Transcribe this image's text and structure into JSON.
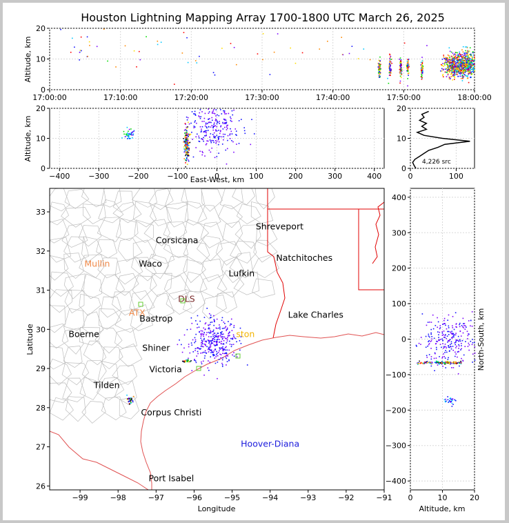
{
  "title": "Houston Lightning Mapping Array 1700-1800 UTC March 26, 2025",
  "chart_data": [
    {
      "type": "scatter",
      "panel": "altitude-time",
      "xlabel": "",
      "ylabel": "Altitude, km",
      "xticks": [
        "17:00:00",
        "17:10:00",
        "17:20:00",
        "17:30:00",
        "17:40:00",
        "17:50:00",
        "18:00:00"
      ],
      "xlim_minutes": [
        0,
        60
      ],
      "ylim": [
        0,
        20
      ],
      "yticks": [
        0,
        10,
        20
      ],
      "grid": true,
      "clusters": [
        {
          "t": 0.5,
          "alt": 12,
          "spread": 1
        },
        {
          "t": 3,
          "alt": 14,
          "spread": 5
        },
        {
          "t": 20,
          "alt": 13,
          "spread": 5
        },
        {
          "t": 41,
          "alt": 12,
          "spread": 5
        },
        {
          "t": 46.5,
          "alt": 7,
          "spread": 1.5
        },
        {
          "t": 48,
          "alt": 7.5,
          "spread": 1.5
        },
        {
          "t": 49.5,
          "alt": 7,
          "spread": 1.5
        },
        {
          "t": 50.5,
          "alt": 7.5,
          "spread": 1.5
        },
        {
          "t": 52.5,
          "alt": 7,
          "spread": 1.5
        },
        {
          "t": 56.5,
          "alt": 8,
          "spread": 2
        },
        {
          "t": 57.5,
          "alt": 8,
          "spread": 2
        },
        {
          "t": 58.5,
          "alt": 8.5,
          "spread": 2
        },
        {
          "t": 59.3,
          "alt": 8.5,
          "spread": 2
        }
      ]
    },
    {
      "type": "scatter",
      "panel": "altitude-east-west",
      "xlabel": "East-West, km",
      "ylabel": "Altitude, km",
      "xlim": [
        -425,
        425
      ],
      "xticks": [
        -400,
        -300,
        -200,
        -100,
        0,
        100,
        200,
        300,
        400
      ],
      "ylim": [
        0,
        20
      ],
      "yticks": [
        0,
        10,
        20
      ],
      "grid": true,
      "clusters": [
        {
          "x": -225,
          "alt": 12,
          "sx": 6,
          "salt": 1.2
        },
        {
          "x": -78,
          "alt": 8,
          "sx": 3,
          "salt": 3
        },
        {
          "x": -10,
          "alt": 14,
          "sx": 35,
          "salt": 4.5
        }
      ]
    },
    {
      "type": "line",
      "panel": "altitude-histogram",
      "xlim": [
        0,
        140
      ],
      "xticks": [
        0,
        100
      ],
      "ylim": [
        0,
        20
      ],
      "yticks": [
        0,
        10,
        20
      ],
      "annotation": "4,226 src",
      "profile_alt": [
        0,
        1,
        2,
        3,
        4,
        5,
        6,
        7,
        8,
        9,
        10,
        11,
        12,
        13,
        14,
        15,
        16,
        17,
        18,
        19
      ],
      "profile_count": [
        12,
        8,
        5,
        10,
        20,
        30,
        40,
        60,
        75,
        130,
        70,
        30,
        15,
        35,
        25,
        35,
        20,
        30,
        25,
        40
      ]
    },
    {
      "type": "scatter",
      "panel": "plan-view-map",
      "xlabel": "Longitude",
      "ylabel": "Latitude",
      "xlim": [
        -99.8,
        -91
      ],
      "ylim": [
        25.9,
        33.6
      ],
      "xticks": [
        -99,
        -98,
        -97,
        -96,
        -95,
        -94,
        -93,
        -92,
        -91
      ],
      "yticks": [
        26,
        27,
        28,
        29,
        30,
        31,
        32,
        33
      ],
      "clusters": [
        {
          "lon": -95.5,
          "lat": 29.7,
          "slon": 0.3,
          "slat": 0.3
        },
        {
          "lon": -97.7,
          "lat": 28.2,
          "slon": 0.04,
          "slat": 0.04
        },
        {
          "lon": -96.2,
          "lat": 29.2,
          "slon": 0.05,
          "slat": 0.02
        }
      ],
      "cities": [
        {
          "name": "Shreveport",
          "lon": -93.75,
          "lat": 32.55,
          "color": "#000000"
        },
        {
          "name": "Corsicana",
          "lon": -96.45,
          "lat": 32.2,
          "color": "#000000"
        },
        {
          "name": "Natchitoches",
          "lon": -93.1,
          "lat": 31.75,
          "color": "#000000"
        },
        {
          "name": "Mullin",
          "lon": -98.55,
          "lat": 31.6,
          "color": "#f08a4a"
        },
        {
          "name": "Waco",
          "lon": -97.15,
          "lat": 31.6,
          "color": "#000000"
        },
        {
          "name": "Lufkin",
          "lon": -94.75,
          "lat": 31.35,
          "color": "#000000"
        },
        {
          "name": "ATX",
          "lon": -97.5,
          "lat": 30.35,
          "color": "#f08a4a"
        },
        {
          "name": "Bastrop",
          "lon": -97.0,
          "lat": 30.2,
          "color": "#000000"
        },
        {
          "name": "Lake Charles",
          "lon": -92.8,
          "lat": 30.3,
          "color": "#000000"
        },
        {
          "name": "Boerne",
          "lon": -98.9,
          "lat": 29.8,
          "color": "#000000"
        },
        {
          "name": "Shiner",
          "lon": -97.0,
          "lat": 29.45,
          "color": "#000000"
        },
        {
          "name": "Victoria",
          "lon": -96.75,
          "lat": 28.9,
          "color": "#000000"
        },
        {
          "name": "Tilden",
          "lon": -98.3,
          "lat": 28.5,
          "color": "#000000"
        },
        {
          "name": "Corpus Christi",
          "lon": -96.6,
          "lat": 27.8,
          "color": "#000000"
        },
        {
          "name": "Hoover-Diana",
          "lon": -94.0,
          "lat": 27.0,
          "color": "#1a1adc"
        },
        {
          "name": "Port Isabel",
          "lon": -96.6,
          "lat": 26.12,
          "color": "#000000"
        },
        {
          "name": "ston",
          "lon": -94.65,
          "lat": 29.8,
          "color": "#f2b300"
        },
        {
          "name": "DLS",
          "lon": -96.2,
          "lat": 30.7,
          "color": "#7a2a2a"
        }
      ]
    },
    {
      "type": "scatter",
      "panel": "north-south-altitude",
      "xlabel": "Altitude, km",
      "ylabel": "North-South, km",
      "xlim": [
        0,
        20
      ],
      "xticks": [
        0,
        10,
        20
      ],
      "ylim": [
        -425,
        425
      ],
      "yticks": [
        -400,
        -300,
        -200,
        -100,
        0,
        100,
        200,
        300,
        400
      ],
      "grid": true,
      "clusters": [
        {
          "alt": 12,
          "y": 0,
          "salt": 4.5,
          "sy": 35
        },
        {
          "alt": 8,
          "y": -65,
          "salt": 3,
          "sy": 2
        },
        {
          "alt": 12,
          "y": -172,
          "salt": 1,
          "sy": 5
        }
      ]
    }
  ],
  "colors": {
    "grid": "#d8d8d8",
    "county": "#bdbdbd",
    "border": "#e00000",
    "coast": "#e05050"
  }
}
